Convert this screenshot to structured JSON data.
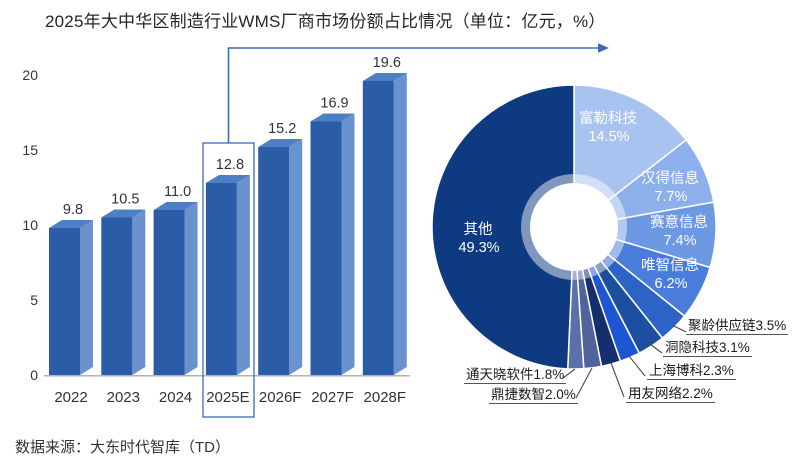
{
  "title": "2025年大中华区制造行业WMS厂商市场份额占比情况（单位：亿元，%）",
  "source": "数据来源：大东时代智库（TD）",
  "colors": {
    "accent": "#3a6cb5",
    "bar_front": "#2b5ca8",
    "bar_side": "#6a92cd",
    "bar_top": "#4d7fc4",
    "axis_line": "#b3b3b3",
    "text_dark": "#333333",
    "leader_line": "#4a4a4a",
    "inside_label_text": "#ffffff"
  },
  "chart_data": [
    {
      "type": "bar",
      "title": "大中华区制造行业WMS市场规模（亿元）",
      "categories": [
        "2022",
        "2023",
        "2024",
        "2025E",
        "2026F",
        "2027F",
        "2028F"
      ],
      "values": [
        9.8,
        10.5,
        11.0,
        12.8,
        15.2,
        16.9,
        19.6
      ],
      "value_labels": [
        "9.8",
        "10.5",
        "11.0",
        "12.8",
        "15.2",
        "16.9",
        "19.6"
      ],
      "xlabel": "",
      "ylabel": "",
      "ylim": [
        0,
        20
      ],
      "yticks": [
        0,
        5,
        10,
        15,
        20
      ],
      "grid": false,
      "style": "3d-column",
      "highlighted_category": "2025E"
    },
    {
      "type": "pie",
      "title": "2025年WMS厂商市场份额占比（%）",
      "donut": true,
      "start_angle": "12-o-clock",
      "direction": "clockwise",
      "slices": [
        {
          "name": "富勒科技",
          "value": 14.5,
          "pct_label": "14.5%",
          "color": "#a9c3f0",
          "label_style": "inside"
        },
        {
          "name": "汉得信息",
          "value": 7.7,
          "pct_label": "7.7%",
          "color": "#8db0ec",
          "label_style": "inside"
        },
        {
          "name": "赛意信息",
          "value": 7.4,
          "pct_label": "7.4%",
          "color": "#6d98e4",
          "label_style": "inside"
        },
        {
          "name": "唯智信息",
          "value": 6.2,
          "pct_label": "6.2%",
          "color": "#4a7cdb",
          "label_style": "inside"
        },
        {
          "name": "聚龄供应链",
          "value": 3.5,
          "pct_label": "3.5%",
          "color": "#2e63c6",
          "label_style": "outside"
        },
        {
          "name": "洞隐科技",
          "value": 3.1,
          "pct_label": "3.1%",
          "color": "#1d4fa0",
          "label_style": "outside"
        },
        {
          "name": "上海博科",
          "value": 2.3,
          "pct_label": "2.3%",
          "color": "#1d55d2",
          "label_style": "outside"
        },
        {
          "name": "用友网络",
          "value": 2.2,
          "pct_label": "2.2%",
          "color": "#142f6b",
          "label_style": "outside"
        },
        {
          "name": "鼎捷数智",
          "value": 2.0,
          "pct_label": "2.0%",
          "color": "#4f639c",
          "label_style": "outside"
        },
        {
          "name": "通天晓软件",
          "value": 1.8,
          "pct_label": "1.8%",
          "color": "#5b70a9",
          "label_style": "outside"
        },
        {
          "name": "其他",
          "value": 49.3,
          "pct_label": "49.3%",
          "color": "#0d3a80",
          "label_style": "inside"
        }
      ]
    }
  ]
}
